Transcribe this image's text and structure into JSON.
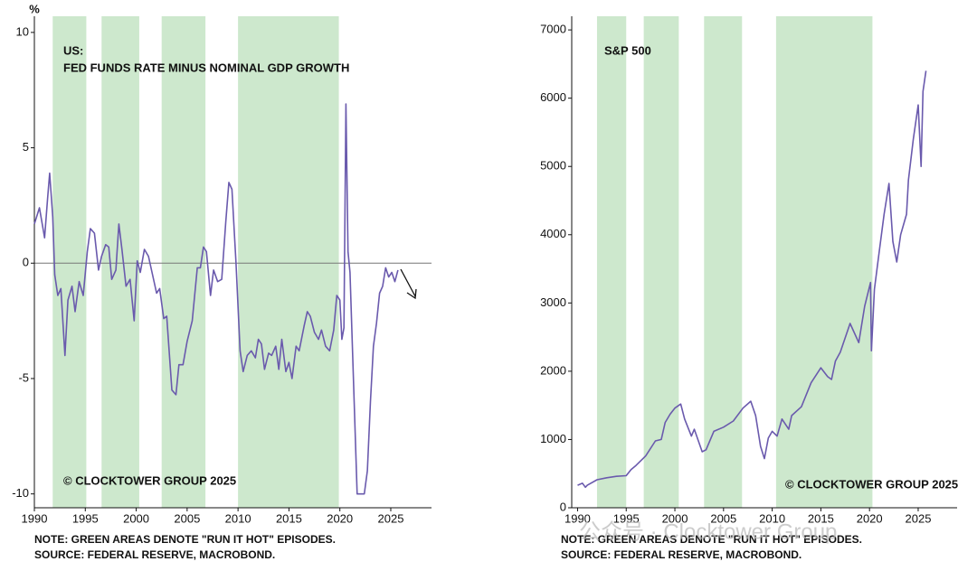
{
  "chart_data": [
    {
      "type": "line",
      "title": "US:",
      "subtitle": "FED FUNDS RATE MINUS NOMINAL GDP GROWTH",
      "ylabel": "%",
      "annotation": "© CLOCKTOWER GROUP 2025",
      "notes": [
        "NOTE: GREEN AREAS DENOTE \"RUN IT HOT\" EPISODES.",
        "SOURCE: FEDERAL RESERVE, MACROBOND."
      ],
      "shaded_regions": [
        [
          1991.8,
          1995.1
        ],
        [
          1996.6,
          2000.3
        ],
        [
          2002.5,
          2006.8
        ],
        [
          2010,
          2019.9
        ]
      ],
      "shade_color": "#cde8cd",
      "zero_line": true,
      "xlim": [
        1990,
        2029
      ],
      "xticks": [
        1990,
        1995,
        2000,
        2005,
        2010,
        2015,
        2020,
        2025
      ],
      "ylim": [
        -10.6,
        10.7
      ],
      "yticks": [
        -10,
        -5,
        0,
        5,
        10
      ],
      "x": [
        1990,
        1990.5,
        1991,
        1991.3,
        1991.5,
        1991.8,
        1992,
        1992.3,
        1992.6,
        1993,
        1993.3,
        1993.7,
        1994,
        1994.4,
        1994.8,
        1995.2,
        1995.5,
        1995.9,
        1996.3,
        1996.6,
        1997,
        1997.3,
        1997.6,
        1998,
        1998.3,
        1998.6,
        1999,
        1999.4,
        1999.8,
        2000.1,
        2000.4,
        2000.8,
        2001.2,
        2001.6,
        2002,
        2002.3,
        2002.7,
        2003,
        2003.5,
        2003.9,
        2004.2,
        2004.6,
        2005,
        2005.5,
        2006,
        2006.3,
        2006.6,
        2006.9,
        2007.3,
        2007.6,
        2008,
        2008.4,
        2008.8,
        2009.1,
        2009.4,
        2009.8,
        2010.2,
        2010.5,
        2010.9,
        2011.3,
        2011.7,
        2012,
        2012.3,
        2012.6,
        2013,
        2013.3,
        2013.7,
        2014,
        2014.3,
        2014.7,
        2015,
        2015.3,
        2015.7,
        2016,
        2016.5,
        2016.8,
        2017.1,
        2017.5,
        2017.9,
        2018.2,
        2018.6,
        2019,
        2019.4,
        2019.7,
        2020,
        2020.2,
        2020.4,
        2020.6,
        2020.8,
        2021,
        2021.4,
        2021.7,
        2022.4,
        2022.7,
        2023,
        2023.3,
        2023.6,
        2023.9,
        2024.2,
        2024.5,
        2024.8,
        2025.1,
        2025.4,
        2025.7
      ],
      "series": [
        {
          "color": "#6a5aad",
          "values": [
            1.7,
            2.4,
            1.1,
            2.8,
            3.9,
            2.0,
            -0.5,
            -1.4,
            -1.1,
            -4.0,
            -1.6,
            -1.0,
            -2.1,
            -0.8,
            -1.4,
            0.5,
            1.5,
            1.3,
            -0.3,
            0.3,
            0.8,
            0.7,
            -0.7,
            -0.3,
            1.7,
            0.6,
            -1.0,
            -0.7,
            -2.5,
            0.1,
            -0.4,
            0.6,
            0.3,
            -0.5,
            -1.3,
            -1.1,
            -2.4,
            -2.3,
            -5.5,
            -5.7,
            -4.4,
            -4.4,
            -3.4,
            -2.5,
            -0.2,
            -0.2,
            0.7,
            0.5,
            -1.4,
            -0.3,
            -0.8,
            -0.7,
            1.8,
            3.5,
            3.2,
            0.0,
            -3.8,
            -4.7,
            -4.0,
            -3.8,
            -4.1,
            -3.3,
            -3.5,
            -4.6,
            -3.9,
            -4.0,
            -3.6,
            -4.6,
            -3.3,
            -4.7,
            -4.3,
            -5.0,
            -3.6,
            -3.8,
            -2.7,
            -2.1,
            -2.3,
            -3.0,
            -3.3,
            -2.9,
            -3.6,
            -3.8,
            -2.9,
            -1.4,
            -1.6,
            -3.3,
            -2.8,
            6.9,
            0.5,
            -0.4,
            -6.0,
            -10.0,
            -10.0,
            -9.0,
            -6.0,
            -3.6,
            -2.6,
            -1.3,
            -1.0,
            -0.2,
            -0.6,
            -0.4,
            -0.8,
            -0.3
          ]
        }
      ]
    },
    {
      "type": "line",
      "title": "S&P 500",
      "annotation": "© CLOCKTOWER GROUP 2025",
      "notes": [
        "NOTE: GREEN AREAS DENOTE \"RUN IT HOT\" EPISODES.",
        "SOURCE: FEDERAL RESERVE, MACROBOND."
      ],
      "shaded_regions": [
        [
          1992,
          1995
        ],
        [
          1996.8,
          2000.4
        ],
        [
          2003,
          2006.9
        ],
        [
          2010.4,
          2020.3
        ]
      ],
      "shade_color": "#cde8cd",
      "xlim": [
        1989.4,
        2029
      ],
      "xticks": [
        1990,
        1995,
        2000,
        2005,
        2010,
        2015,
        2020,
        2025
      ],
      "ylim": [
        0,
        7200
      ],
      "yticks": [
        0,
        1000,
        2000,
        3000,
        4000,
        5000,
        6000,
        7000
      ],
      "x": [
        1990,
        1990.5,
        1990.8,
        1991,
        1992,
        1993,
        1994,
        1995,
        1995.5,
        1996,
        1997,
        1998,
        1998.6,
        1999,
        1999.5,
        2000,
        2000.6,
        2001,
        2001.7,
        2002,
        2002.8,
        2003.2,
        2004,
        2005,
        2006,
        2007,
        2007.8,
        2008.3,
        2008.8,
        2009.2,
        2009.6,
        2010,
        2010.5,
        2011,
        2011.7,
        2012,
        2013,
        2014,
        2015,
        2015.7,
        2016.1,
        2016.5,
        2017,
        2018,
        2018.9,
        2019.5,
        2020.1,
        2020.2,
        2020.5,
        2021,
        2021.5,
        2022,
        2022.4,
        2022.8,
        2023.2,
        2023.8,
        2024,
        2024.5,
        2025,
        2025.3,
        2025.5,
        2025.8
      ],
      "series": [
        {
          "color": "#6a5aad",
          "values": [
            330,
            360,
            300,
            330,
            410,
            440,
            460,
            470,
            560,
            620,
            760,
            980,
            1000,
            1250,
            1370,
            1460,
            1520,
            1300,
            1050,
            1150,
            820,
            850,
            1120,
            1180,
            1270,
            1460,
            1560,
            1350,
            900,
            720,
            1020,
            1120,
            1050,
            1300,
            1150,
            1350,
            1480,
            1830,
            2050,
            1920,
            1880,
            2150,
            2280,
            2700,
            2420,
            2950,
            3300,
            2300,
            3200,
            3750,
            4300,
            4750,
            3900,
            3600,
            4000,
            4300,
            4800,
            5400,
            5900,
            5000,
            6100,
            6400
          ]
        }
      ]
    }
  ],
  "watermark": "公众号 · Clocktower Group"
}
